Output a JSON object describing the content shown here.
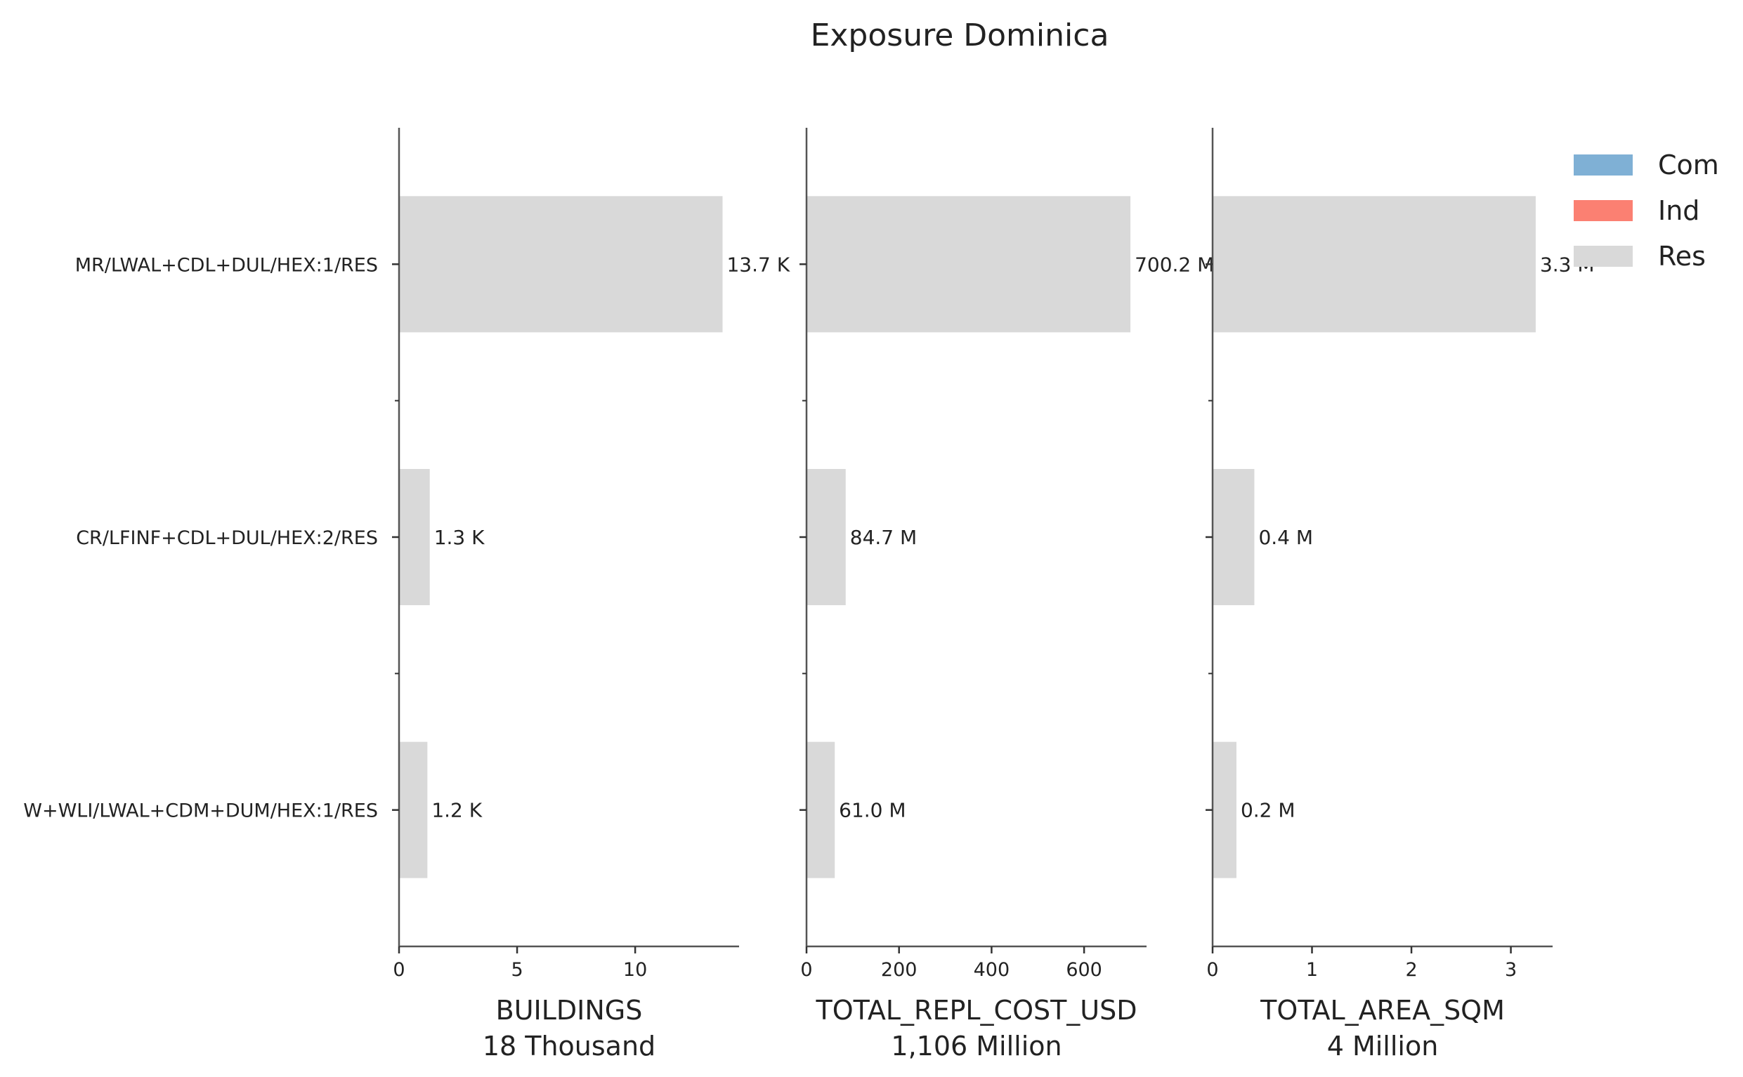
{
  "chart_data": {
    "type": "bar",
    "orientation": "horizontal",
    "title": "Exposure Dominica",
    "categories": [
      "MR/LWAL+CDL+DUL/HEX:1/RES",
      "CR/LFINF+CDL+DUL/HEX:2/RES",
      "W+WLI/LWAL+CDM+DUM/HEX:1/RES"
    ],
    "legend": {
      "placement": "top-right",
      "entries": [
        {
          "name": "Com",
          "color": "#7fb0d5"
        },
        {
          "name": "Ind",
          "color": "#fb8072"
        },
        {
          "name": "Res",
          "color": "#d9d9d9"
        }
      ]
    },
    "panels": [
      {
        "xlabel": "BUILDINGS",
        "total_label": "18 Thousand",
        "values": [
          13.7,
          1.3,
          1.2
        ],
        "value_labels": [
          "13.7 K",
          "1.3 K",
          "1.2 K"
        ],
        "unit": "Thousand",
        "xlim": [
          0,
          14.4
        ],
        "xticks": [
          0,
          5,
          10
        ],
        "xtick_labels": [
          "0",
          "5",
          "10"
        ],
        "series": "Res"
      },
      {
        "xlabel": "TOTAL_REPL_COST_USD",
        "total_label": "1,106 Million",
        "values": [
          700.2,
          84.7,
          61.0
        ],
        "value_labels": [
          "700.2 M",
          "84.7 M",
          "61.0 M"
        ],
        "unit": "Million",
        "xlim": [
          0,
          735
        ],
        "xticks": [
          0,
          200,
          400,
          600
        ],
        "xtick_labels": [
          "0",
          "200",
          "400",
          "600"
        ],
        "series": "Res"
      },
      {
        "xlabel": "TOTAL_AREA_SQM",
        "total_label": "4 Million",
        "values": [
          3.25,
          0.42,
          0.24
        ],
        "value_labels": [
          "3.3 M",
          "0.4 M",
          "0.2 M"
        ],
        "unit": "Million",
        "xlim": [
          0,
          3.42
        ],
        "xticks": [
          0,
          1,
          2,
          3
        ],
        "xtick_labels": [
          "0",
          "1",
          "2",
          "3"
        ],
        "series": "Res"
      }
    ],
    "grid": false
  }
}
